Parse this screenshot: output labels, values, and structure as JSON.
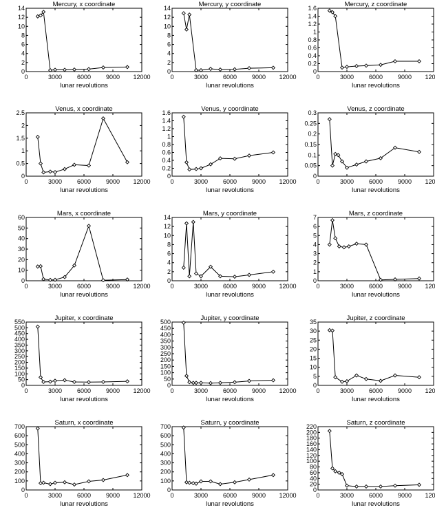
{
  "chart_data": [
    {
      "type": "line",
      "title": "Mercury, x coordinate",
      "xlabel": "lunar revolutions",
      "ylabel": "",
      "xlim": [
        0,
        12000
      ],
      "ylim": [
        0,
        14
      ],
      "xticks": [
        0,
        3000,
        6000,
        9000,
        12000
      ],
      "yticks": [
        0,
        2,
        4,
        6,
        8,
        10,
        12,
        14
      ],
      "x": [
        1200,
        1500,
        1800,
        2500,
        3000,
        4000,
        5000,
        6500,
        8000,
        10500
      ],
      "y": [
        12.2,
        12.4,
        13.2,
        0.3,
        0.4,
        0.4,
        0.45,
        0.55,
        0.9,
        1.0
      ]
    },
    {
      "type": "line",
      "title": "Mercury, y coordinate",
      "xlabel": "lunar revolutions",
      "ylabel": "",
      "xlim": [
        0,
        12000
      ],
      "ylim": [
        0,
        14
      ],
      "xticks": [
        0,
        3000,
        6000,
        9000,
        12000
      ],
      "yticks": [
        0,
        2,
        4,
        6,
        8,
        10,
        12,
        14
      ],
      "x": [
        1200,
        1500,
        1800,
        2500,
        3000,
        4000,
        5000,
        6500,
        8000,
        10500
      ],
      "y": [
        12.9,
        9.3,
        12.6,
        0.3,
        0.3,
        0.6,
        0.45,
        0.5,
        0.75,
        0.85
      ]
    },
    {
      "type": "line",
      "title": "Mercury, z coordinate",
      "xlabel": "lunar revolutions",
      "ylabel": "",
      "xlim": [
        0,
        12000
      ],
      "ylim": [
        0,
        1.6
      ],
      "xticks": [
        0,
        3000,
        6000,
        9000,
        12000
      ],
      "yticks": [
        0,
        0.2,
        0.4,
        0.6,
        0.8,
        1,
        1.2,
        1.4,
        1.6
      ],
      "x": [
        1200,
        1500,
        1800,
        2500,
        3000,
        4000,
        5000,
        6500,
        8000,
        10500
      ],
      "y": [
        1.54,
        1.5,
        1.4,
        0.1,
        0.12,
        0.14,
        0.15,
        0.17,
        0.26,
        0.26
      ]
    },
    {
      "type": "line",
      "title": "Venus, x coordinate",
      "xlabel": "lunar revolutions",
      "ylabel": "",
      "xlim": [
        0,
        12000
      ],
      "ylim": [
        0,
        2.5
      ],
      "xticks": [
        0,
        3000,
        6000,
        9000,
        12000
      ],
      "yticks": [
        0,
        0.5,
        1,
        1.5,
        2,
        2.5
      ],
      "x": [
        1200,
        1500,
        1800,
        2500,
        3000,
        4000,
        5000,
        6500,
        8000,
        10500
      ],
      "y": [
        1.55,
        0.5,
        0.15,
        0.18,
        0.16,
        0.28,
        0.45,
        0.42,
        2.28,
        0.55
      ]
    },
    {
      "type": "line",
      "title": "Venus, y coordinate",
      "xlabel": "lunar revolutions",
      "ylabel": "",
      "xlim": [
        0,
        12000
      ],
      "ylim": [
        0,
        1.6
      ],
      "xticks": [
        0,
        3000,
        6000,
        9000,
        12000
      ],
      "yticks": [
        0,
        0.2,
        0.4,
        0.6,
        0.8,
        1,
        1.2,
        1.4,
        1.6
      ],
      "x": [
        1200,
        1500,
        1800,
        2500,
        3000,
        4000,
        5000,
        6500,
        8000,
        10500
      ],
      "y": [
        1.5,
        0.35,
        0.17,
        0.18,
        0.2,
        0.3,
        0.45,
        0.44,
        0.52,
        0.6
      ]
    },
    {
      "type": "line",
      "title": "Venus, z coordinate",
      "xlabel": "lunar revolutions",
      "ylabel": "",
      "xlim": [
        0,
        12000
      ],
      "ylim": [
        0,
        0.3
      ],
      "xticks": [
        0,
        3000,
        6000,
        9000,
        12000
      ],
      "yticks": [
        0,
        0.05,
        0.1,
        0.15,
        0.2,
        0.25,
        0.3
      ],
      "x": [
        1200,
        1500,
        1800,
        2100,
        2500,
        3000,
        4000,
        5000,
        6500,
        8000,
        10500
      ],
      "y": [
        0.27,
        0.05,
        0.105,
        0.1,
        0.07,
        0.04,
        0.055,
        0.07,
        0.085,
        0.135,
        0.115
      ]
    },
    {
      "type": "line",
      "title": "Mars, x coordinate",
      "xlabel": "lunar revolutions",
      "ylabel": "",
      "xlim": [
        0,
        12000
      ],
      "ylim": [
        0,
        60
      ],
      "xticks": [
        0,
        3000,
        6000,
        9000,
        12000
      ],
      "yticks": [
        0,
        10,
        20,
        30,
        40,
        50,
        60
      ],
      "x": [
        1200,
        1500,
        1800,
        2500,
        3000,
        4000,
        5000,
        6500,
        8000,
        10500
      ],
      "y": [
        13.5,
        13.8,
        1.5,
        0.8,
        0.9,
        3.5,
        14.5,
        52,
        0.5,
        1.2
      ]
    },
    {
      "type": "line",
      "title": "Mars, y coordinate",
      "xlabel": "lunar revolutions",
      "ylabel": "",
      "xlim": [
        0,
        12000
      ],
      "ylim": [
        0,
        14
      ],
      "xticks": [
        0,
        3000,
        6000,
        9000,
        12000
      ],
      "yticks": [
        0,
        2,
        4,
        6,
        8,
        10,
        12,
        14
      ],
      "x": [
        1200,
        1500,
        1800,
        2200,
        2500,
        3000,
        4000,
        5000,
        6500,
        8000,
        10500
      ],
      "y": [
        2.9,
        12.7,
        1.0,
        13.0,
        1.6,
        1.0,
        3.1,
        1.0,
        0.9,
        1.3,
        2.0
      ]
    },
    {
      "type": "line",
      "title": "Mars, z coordinate",
      "xlabel": "lunar revolutions",
      "ylabel": "",
      "xlim": [
        0,
        12000
      ],
      "ylim": [
        0,
        7
      ],
      "xticks": [
        0,
        3000,
        6000,
        9000,
        12000
      ],
      "yticks": [
        0,
        1,
        2,
        3,
        4,
        5,
        6,
        7
      ],
      "x": [
        1200,
        1500,
        1800,
        2200,
        2700,
        3200,
        4000,
        5000,
        6500,
        8000,
        10500
      ],
      "y": [
        4.0,
        6.7,
        4.7,
        3.8,
        3.7,
        3.8,
        4.1,
        4.0,
        0.1,
        0.15,
        0.25
      ]
    },
    {
      "type": "line",
      "title": "Jupiter, x coordinate",
      "xlabel": "lunar revolutions",
      "ylabel": "",
      "xlim": [
        0,
        12000
      ],
      "ylim": [
        0,
        550
      ],
      "xticks": [
        0,
        3000,
        6000,
        9000,
        12000
      ],
      "yticks": [
        0,
        50,
        100,
        150,
        200,
        250,
        300,
        350,
        400,
        450,
        500,
        550
      ],
      "x": [
        1200,
        1500,
        1800,
        2500,
        3000,
        4000,
        5000,
        6500,
        8000,
        10500
      ],
      "y": [
        510,
        70,
        30,
        32,
        40,
        45,
        30,
        28,
        30,
        35
      ]
    },
    {
      "type": "line",
      "title": "Jupiter, y coordinate",
      "xlabel": "lunar revolutions",
      "ylabel": "",
      "xlim": [
        0,
        12000
      ],
      "ylim": [
        0,
        500
      ],
      "xticks": [
        0,
        3000,
        6000,
        9000,
        12000
      ],
      "yticks": [
        0,
        50,
        100,
        150,
        200,
        250,
        300,
        350,
        400,
        450,
        500
      ],
      "x": [
        1200,
        1500,
        1800,
        2200,
        2500,
        3000,
        4000,
        5000,
        6500,
        8000,
        10500
      ],
      "y": [
        495,
        75,
        25,
        20,
        20,
        20,
        18,
        20,
        25,
        35,
        40
      ]
    },
    {
      "type": "line",
      "title": "Jupiter, z coordinate",
      "xlabel": "lunar revolutions",
      "ylabel": "",
      "xlim": [
        0,
        12000
      ],
      "ylim": [
        0,
        35
      ],
      "xticks": [
        0,
        3000,
        6000,
        9000,
        12000
      ],
      "yticks": [
        0,
        5,
        10,
        15,
        20,
        25,
        30,
        35
      ],
      "x": [
        1200,
        1500,
        1800,
        2500,
        3000,
        4000,
        5000,
        6500,
        8000,
        10500
      ],
      "y": [
        30.5,
        30.3,
        4.5,
        2,
        2.3,
        5.5,
        3.5,
        2.5,
        5.5,
        4.5
      ]
    },
    {
      "type": "line",
      "title": "Saturn, x coordinate",
      "xlabel": "lunar revolutions",
      "ylabel": "",
      "xlim": [
        0,
        12000
      ],
      "ylim": [
        0,
        700
      ],
      "xticks": [
        0,
        3000,
        6000,
        9000,
        12000
      ],
      "yticks": [
        0,
        100,
        200,
        300,
        400,
        500,
        600,
        700
      ],
      "x": [
        1200,
        1500,
        1800,
        2500,
        3000,
        4000,
        5000,
        6500,
        8000,
        10500
      ],
      "y": [
        680,
        75,
        80,
        65,
        80,
        85,
        60,
        95,
        110,
        165
      ]
    },
    {
      "type": "line",
      "title": "Saturn, y coordinate",
      "xlabel": "lunar revolutions",
      "ylabel": "",
      "xlim": [
        0,
        12000
      ],
      "ylim": [
        0,
        700
      ],
      "xticks": [
        0,
        3000,
        6000,
        9000,
        12000
      ],
      "yticks": [
        0,
        100,
        200,
        300,
        400,
        500,
        600,
        700
      ],
      "x": [
        1200,
        1500,
        1800,
        2200,
        2500,
        3000,
        4000,
        5000,
        6500,
        8000,
        10500
      ],
      "y": [
        690,
        85,
        80,
        75,
        70,
        95,
        95,
        65,
        85,
        115,
        165
      ]
    },
    {
      "type": "line",
      "title": "Saturn, z coordinate",
      "xlabel": "lunar revolutions",
      "ylabel": "",
      "xlim": [
        0,
        12000
      ],
      "ylim": [
        0,
        220
      ],
      "xticks": [
        0,
        3000,
        6000,
        9000,
        12000
      ],
      "yticks": [
        0,
        20,
        40,
        60,
        80,
        100,
        120,
        140,
        160,
        180,
        200,
        220
      ],
      "x": [
        1200,
        1500,
        1800,
        2200,
        2500,
        3000,
        4000,
        5000,
        6500,
        8000,
        10500
      ],
      "y": [
        205,
        75,
        65,
        60,
        55,
        15,
        12,
        12,
        12,
        15,
        18
      ]
    }
  ]
}
